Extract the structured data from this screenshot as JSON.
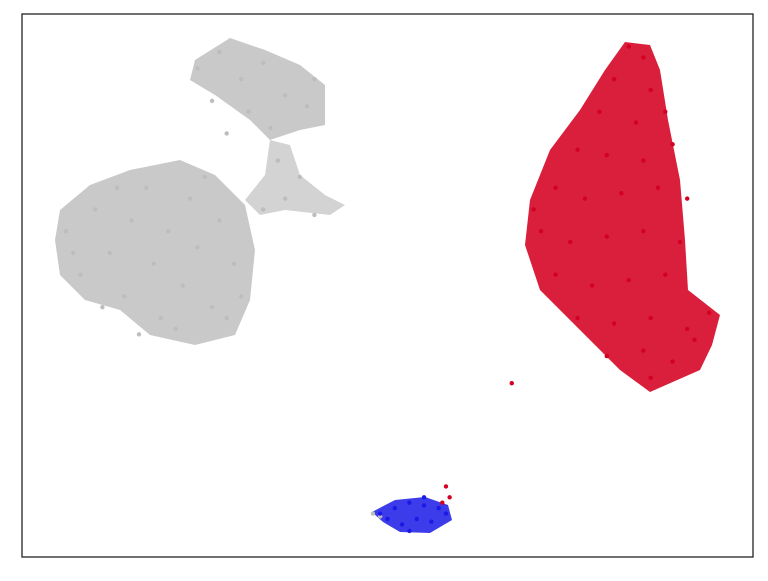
{
  "chart_data": {
    "type": "scatter",
    "xlim": [
      0,
      100
    ],
    "ylim": [
      0,
      100
    ],
    "series": [
      {
        "color": "#bdbdbd",
        "x": [
          6,
          8,
          10,
          12,
          14,
          15,
          17,
          18,
          19,
          20,
          22,
          23,
          24,
          26,
          27,
          29,
          30,
          11,
          16,
          21,
          25,
          13,
          7,
          28,
          33,
          36,
          40,
          38,
          35,
          24,
          27,
          30,
          33,
          36,
          39,
          26,
          31,
          28,
          34,
          40,
          48,
          49
        ],
        "y": [
          60,
          52,
          64,
          56,
          48,
          62,
          68,
          54,
          44,
          60,
          50,
          66,
          57,
          46,
          62,
          54,
          48,
          46,
          41,
          42,
          70,
          68,
          56,
          44,
          64,
          66,
          63,
          70,
          73,
          90,
          93,
          88,
          91,
          85,
          83,
          84,
          82,
          78,
          79,
          88,
          8,
          7.5
        ]
      },
      {
        "color": "#d40021",
        "x": [
          83,
          85,
          81,
          86,
          79,
          84,
          88,
          76,
          80,
          85,
          89,
          73,
          77,
          82,
          87,
          91,
          71,
          75,
          80,
          85,
          90,
          73,
          78,
          83,
          88,
          76,
          81,
          86,
          91,
          94,
          80,
          85,
          89,
          92,
          86,
          70,
          67,
          58,
          58.5,
          57.5
        ],
        "y": [
          94,
          92,
          88,
          86,
          82,
          80,
          82,
          75,
          74,
          73,
          76,
          68,
          66,
          67,
          68,
          66,
          60,
          58,
          59,
          60,
          58,
          52,
          50,
          51,
          52,
          44,
          43,
          44,
          42,
          45,
          37,
          38,
          36,
          40,
          33,
          64,
          32,
          13,
          11,
          10
        ]
      },
      {
        "color": "#1a1ae6",
        "x": [
          49,
          51,
          53,
          55,
          57,
          52,
          54,
          56,
          50,
          53,
          58,
          55
        ],
        "y": [
          8,
          9,
          10,
          9.5,
          9,
          6,
          7,
          6.5,
          7,
          4.8,
          8,
          11
        ]
      }
    ]
  }
}
